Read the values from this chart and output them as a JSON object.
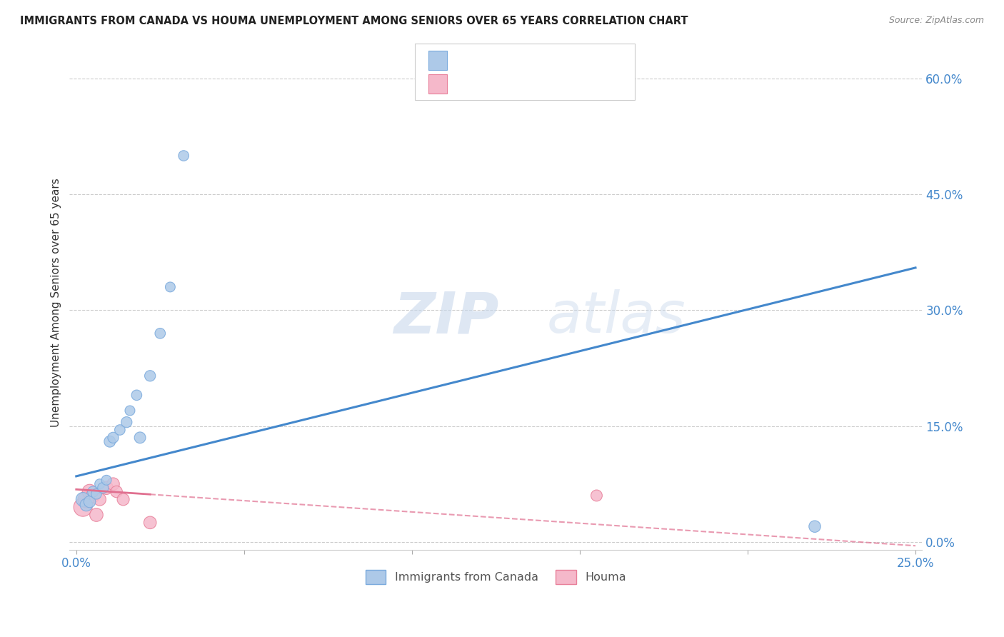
{
  "title": "IMMIGRANTS FROM CANADA VS HOUMA UNEMPLOYMENT AMONG SENIORS OVER 65 YEARS CORRELATION CHART",
  "source": "Source: ZipAtlas.com",
  "ylabel": "Unemployment Among Seniors over 65 years",
  "legend_label1": "Immigrants from Canada",
  "legend_label2": "Houma",
  "xlim": [
    -0.002,
    0.252
  ],
  "ylim": [
    -0.01,
    0.63
  ],
  "xticks": [
    0.0,
    0.05,
    0.1,
    0.15,
    0.2,
    0.25
  ],
  "xticklabels": [
    "0.0%",
    "",
    "",
    "",
    "",
    "25.0%"
  ],
  "yticks_right": [
    0.0,
    0.15,
    0.3,
    0.45,
    0.6
  ],
  "ytick_right_labels": [
    "0.0%",
    "15.0%",
    "30.0%",
    "45.0%",
    "60.0%"
  ],
  "blue_color": "#adc9e8",
  "blue_edge": "#7aaadd",
  "pink_color": "#f5b8ca",
  "pink_edge": "#e8809a",
  "line_blue": "#4488cc",
  "line_pink": "#e07090",
  "watermark_zip": "ZIP",
  "watermark_atlas": "atlas",
  "blue_x": [
    0.002,
    0.003,
    0.004,
    0.005,
    0.006,
    0.007,
    0.008,
    0.009,
    0.01,
    0.011,
    0.013,
    0.015,
    0.016,
    0.018,
    0.019,
    0.022,
    0.025,
    0.028,
    0.032,
    0.22
  ],
  "blue_y": [
    0.055,
    0.048,
    0.052,
    0.065,
    0.062,
    0.075,
    0.07,
    0.08,
    0.13,
    0.135,
    0.145,
    0.155,
    0.17,
    0.19,
    0.135,
    0.215,
    0.27,
    0.33,
    0.5,
    0.02
  ],
  "pink_x": [
    0.002,
    0.003,
    0.004,
    0.005,
    0.006,
    0.007,
    0.009,
    0.011,
    0.012,
    0.014,
    0.022,
    0.155
  ],
  "pink_y": [
    0.045,
    0.055,
    0.065,
    0.06,
    0.035,
    0.055,
    0.07,
    0.075,
    0.065,
    0.055,
    0.025,
    0.06
  ],
  "blue_sizes": [
    200,
    160,
    140,
    120,
    110,
    100,
    120,
    100,
    130,
    120,
    110,
    120,
    100,
    110,
    130,
    120,
    110,
    100,
    110,
    140
  ],
  "pink_sizes": [
    350,
    280,
    220,
    200,
    180,
    160,
    180,
    160,
    140,
    150,
    160,
    130
  ],
  "trend_blue_x0": 0.0,
  "trend_blue_y0": 0.085,
  "trend_blue_x1": 0.25,
  "trend_blue_y1": 0.355,
  "trend_pink_x0": 0.0,
  "trend_pink_y0": 0.068,
  "trend_pink_x1": 0.25,
  "trend_pink_y1": -0.005,
  "trend_pink_solid_end": 0.022
}
